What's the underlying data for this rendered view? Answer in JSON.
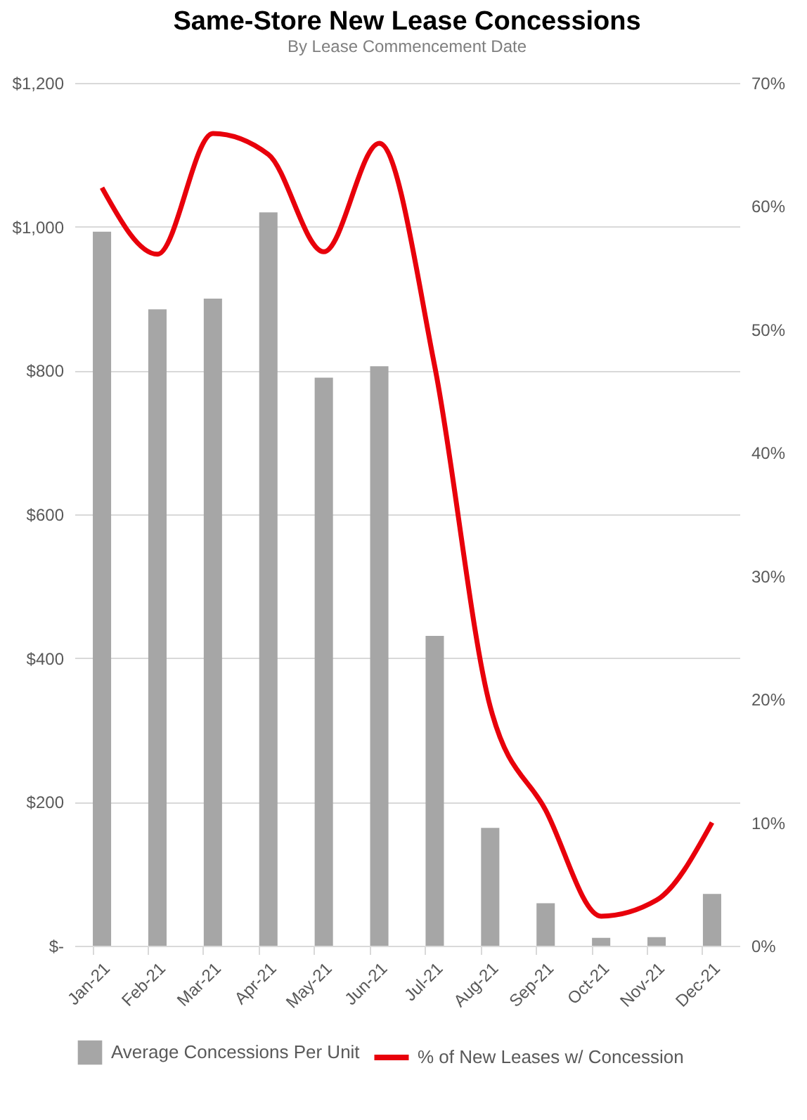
{
  "chart_data": {
    "type": "bar",
    "title": "Same-Store New Lease Concessions",
    "subtitle": "By Lease Commencement Date",
    "categories": [
      "Jan-21",
      "Feb-21",
      "Mar-21",
      "Apr-21",
      "May-21",
      "Jun-21",
      "Jul-21",
      "Aug-21",
      "Sep-21",
      "Oct-21",
      "Nov-21",
      "Dec-21"
    ],
    "series": [
      {
        "name": "Average Concessions Per Unit",
        "color": "#a6a6a6",
        "values": [
          993,
          885,
          900,
          1020,
          790,
          806,
          431,
          164,
          59,
          11,
          12,
          72
        ]
      },
      {
        "name": "% of New Leases w/ Concession",
        "type": "line",
        "axis": "y2",
        "color": "#e8000b",
        "values": [
          61.5,
          56.1,
          65.9,
          64.2,
          56.3,
          65.1,
          47,
          19.4,
          11,
          2.4,
          3.7,
          10
        ]
      }
    ],
    "ylim": [
      0,
      1200
    ],
    "yticks": [
      {
        "value": 0,
        "label": "$-"
      },
      {
        "value": 200,
        "label": "$200"
      },
      {
        "value": 400,
        "label": "$400"
      },
      {
        "value": 600,
        "label": "$600"
      },
      {
        "value": 800,
        "label": "$800"
      },
      {
        "value": 1000,
        "label": "$1,000"
      },
      {
        "value": 1200,
        "label": "$1,200"
      }
    ],
    "y2lim": [
      0,
      70
    ],
    "y2ticks": [
      {
        "value": 0,
        "label": "0%"
      },
      {
        "value": 10,
        "label": "10%"
      },
      {
        "value": 20,
        "label": "20%"
      },
      {
        "value": 30,
        "label": "30%"
      },
      {
        "value": 40,
        "label": "40%"
      },
      {
        "value": 50,
        "label": "50%"
      },
      {
        "value": 60,
        "label": "60%"
      },
      {
        "value": 70,
        "label": "70%"
      }
    ],
    "grid": "y",
    "legend": "bottom",
    "marker": "none",
    "line_style": "solid"
  }
}
